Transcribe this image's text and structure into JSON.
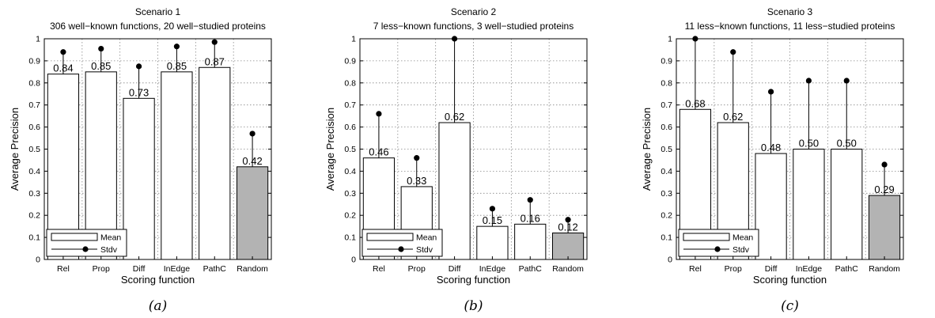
{
  "chart_data": [
    {
      "type": "bar",
      "title": "Scenario 1",
      "subtitle": "306 well−known functions, 20 well−studied proteins",
      "xlabel": "Scoring function",
      "ylabel": "Average Precision",
      "categories": [
        "Rel",
        "Prop",
        "Diff",
        "InEdge",
        "PathC",
        "Random"
      ],
      "series": [
        {
          "name": "Mean",
          "values": [
            0.84,
            0.85,
            0.73,
            0.85,
            0.87,
            0.42
          ]
        },
        {
          "name": "Stdv",
          "values": [
            0.94,
            0.955,
            0.875,
            0.965,
            0.985,
            0.57
          ]
        }
      ],
      "value_labels": [
        "0.84",
        "0.85",
        "0.73",
        "0.85",
        "0.87",
        "0.42"
      ],
      "highlight_category": "Random",
      "ylim": [
        0,
        1
      ],
      "yticks": [
        "0",
        "0.1",
        "0.2",
        "0.3",
        "0.4",
        "0.5",
        "0.6",
        "0.7",
        "0.8",
        "0.9",
        "1"
      ],
      "grid": true,
      "legend_position": "bottom-left",
      "caption": "(a)"
    },
    {
      "type": "bar",
      "title": "Scenario 2",
      "subtitle": "7 less−known functions, 3 well−studied proteins",
      "xlabel": "Scoring function",
      "ylabel": "Average Precision",
      "categories": [
        "Rel",
        "Prop",
        "Diff",
        "InEdge",
        "PathC",
        "Random"
      ],
      "series": [
        {
          "name": "Mean",
          "values": [
            0.46,
            0.33,
            0.62,
            0.15,
            0.16,
            0.12
          ]
        },
        {
          "name": "Stdv",
          "values": [
            0.66,
            0.46,
            1.0,
            0.23,
            0.27,
            0.18
          ]
        }
      ],
      "value_labels": [
        "0.46",
        "0.33",
        "0.62",
        "0.15",
        "0.16",
        "0.12"
      ],
      "highlight_category": "Random",
      "ylim": [
        0,
        1
      ],
      "yticks": [
        "0",
        "0.1",
        "0.2",
        "0.3",
        "0.4",
        "0.5",
        "0.6",
        "0.7",
        "0.8",
        "0.9",
        "1"
      ],
      "grid": true,
      "legend_position": "bottom-left",
      "caption": "(b)"
    },
    {
      "type": "bar",
      "title": "Scenario 3",
      "subtitle": "11 less−known functions, 11 less−studied proteins",
      "xlabel": "Scoring function",
      "ylabel": "Average Precision",
      "categories": [
        "Rel",
        "Prop",
        "Diff",
        "InEdge",
        "PathC",
        "Random"
      ],
      "series": [
        {
          "name": "Mean",
          "values": [
            0.68,
            0.62,
            0.48,
            0.5,
            0.5,
            0.29
          ]
        },
        {
          "name": "Stdv",
          "values": [
            1.0,
            0.94,
            0.76,
            0.81,
            0.81,
            0.43
          ]
        }
      ],
      "value_labels": [
        "0.68",
        "0.62",
        "0.48",
        "0.50",
        "0.50",
        "0.29"
      ],
      "highlight_category": "Random",
      "ylim": [
        0,
        1
      ],
      "yticks": [
        "0",
        "0.1",
        "0.2",
        "0.3",
        "0.4",
        "0.5",
        "0.6",
        "0.7",
        "0.8",
        "0.9",
        "1"
      ],
      "grid": true,
      "legend_position": "bottom-left",
      "caption": "(c)"
    }
  ],
  "colors": {
    "bar_fill": "#ffffff",
    "highlight_fill": "#b3b3b3",
    "bar_stroke": "#000000",
    "grid": "#888888",
    "marker": "#000000"
  }
}
